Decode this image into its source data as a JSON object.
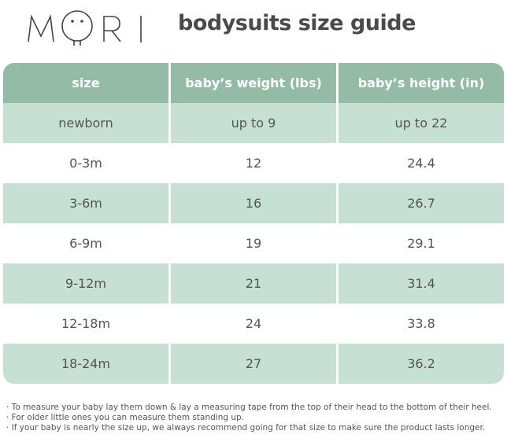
{
  "logo": {
    "text": "MORI"
  },
  "title": "bodysuits size guide",
  "table": {
    "headers": [
      "size",
      "baby’s weight (lbs)",
      "baby’s height (in)"
    ],
    "rows": [
      [
        "newborn",
        "up to 9",
        "up to 22"
      ],
      [
        "0-3m",
        "12",
        "24.4"
      ],
      [
        "3-6m",
        "16",
        "26.7"
      ],
      [
        "6-9m",
        "19",
        "29.1"
      ],
      [
        "9-12m",
        "21",
        "31.4"
      ],
      [
        "12-18m",
        "24",
        "33.8"
      ],
      [
        "18-24m",
        "27",
        "36.2"
      ]
    ]
  },
  "notes": [
    "· To measure your baby lay them down & lay a measuring tape from the top of their head to the bottom of their heel.",
    "· For older little ones you can measure them standing up.",
    "· If your baby is nearly the size up, we always recommend going for that size to make sure the product lasts longer."
  ],
  "colors": {
    "header": "#93bba6",
    "shade": "#c6e0d3"
  }
}
